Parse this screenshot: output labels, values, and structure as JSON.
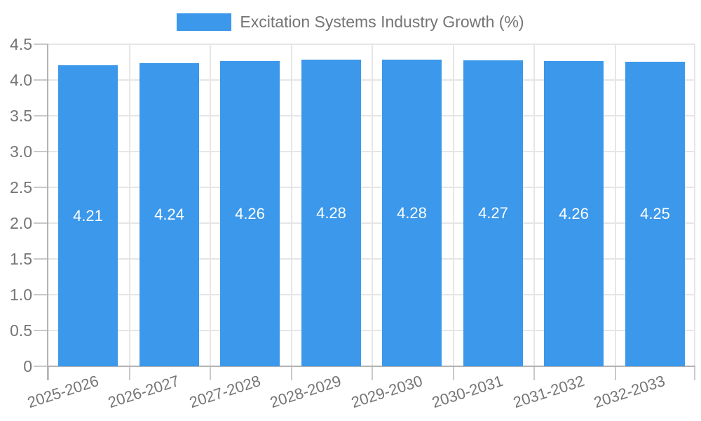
{
  "chart_data": {
    "type": "bar",
    "title": "",
    "legend": {
      "label": "Excitation Systems Industry Growth (%)",
      "position": "top"
    },
    "categories": [
      "2025-2026",
      "2026-2027",
      "2027-2028",
      "2028-2029",
      "2029-2030",
      "2030-2031",
      "2031-2032",
      "2032-2033"
    ],
    "values": [
      4.21,
      4.24,
      4.26,
      4.28,
      4.28,
      4.27,
      4.26,
      4.25
    ],
    "value_labels": [
      "4.21",
      "4.24",
      "4.26",
      "4.28",
      "4.28",
      "4.27",
      "4.26",
      "4.25"
    ],
    "ylim": [
      0,
      4.5
    ],
    "ytick_values": [
      0,
      0.5,
      1.0,
      1.5,
      2.0,
      2.5,
      3.0,
      3.5,
      4.0,
      4.5
    ],
    "ytick_labels": [
      "0",
      "0.5",
      "1.0",
      "1.5",
      "2.0",
      "2.5",
      "3.0",
      "3.5",
      "4.0",
      "4.5"
    ],
    "xlabel": "",
    "ylabel": "",
    "grid": true,
    "x_label_rotation_deg": -18,
    "colors": {
      "bar": "#3b98eb",
      "grid": "#e6e6e6",
      "axis": "#b3b3b3",
      "tick": "#c9c9c9",
      "text": "#757575",
      "bar_value_text": "#ffffff",
      "background": "#ffffff"
    }
  }
}
